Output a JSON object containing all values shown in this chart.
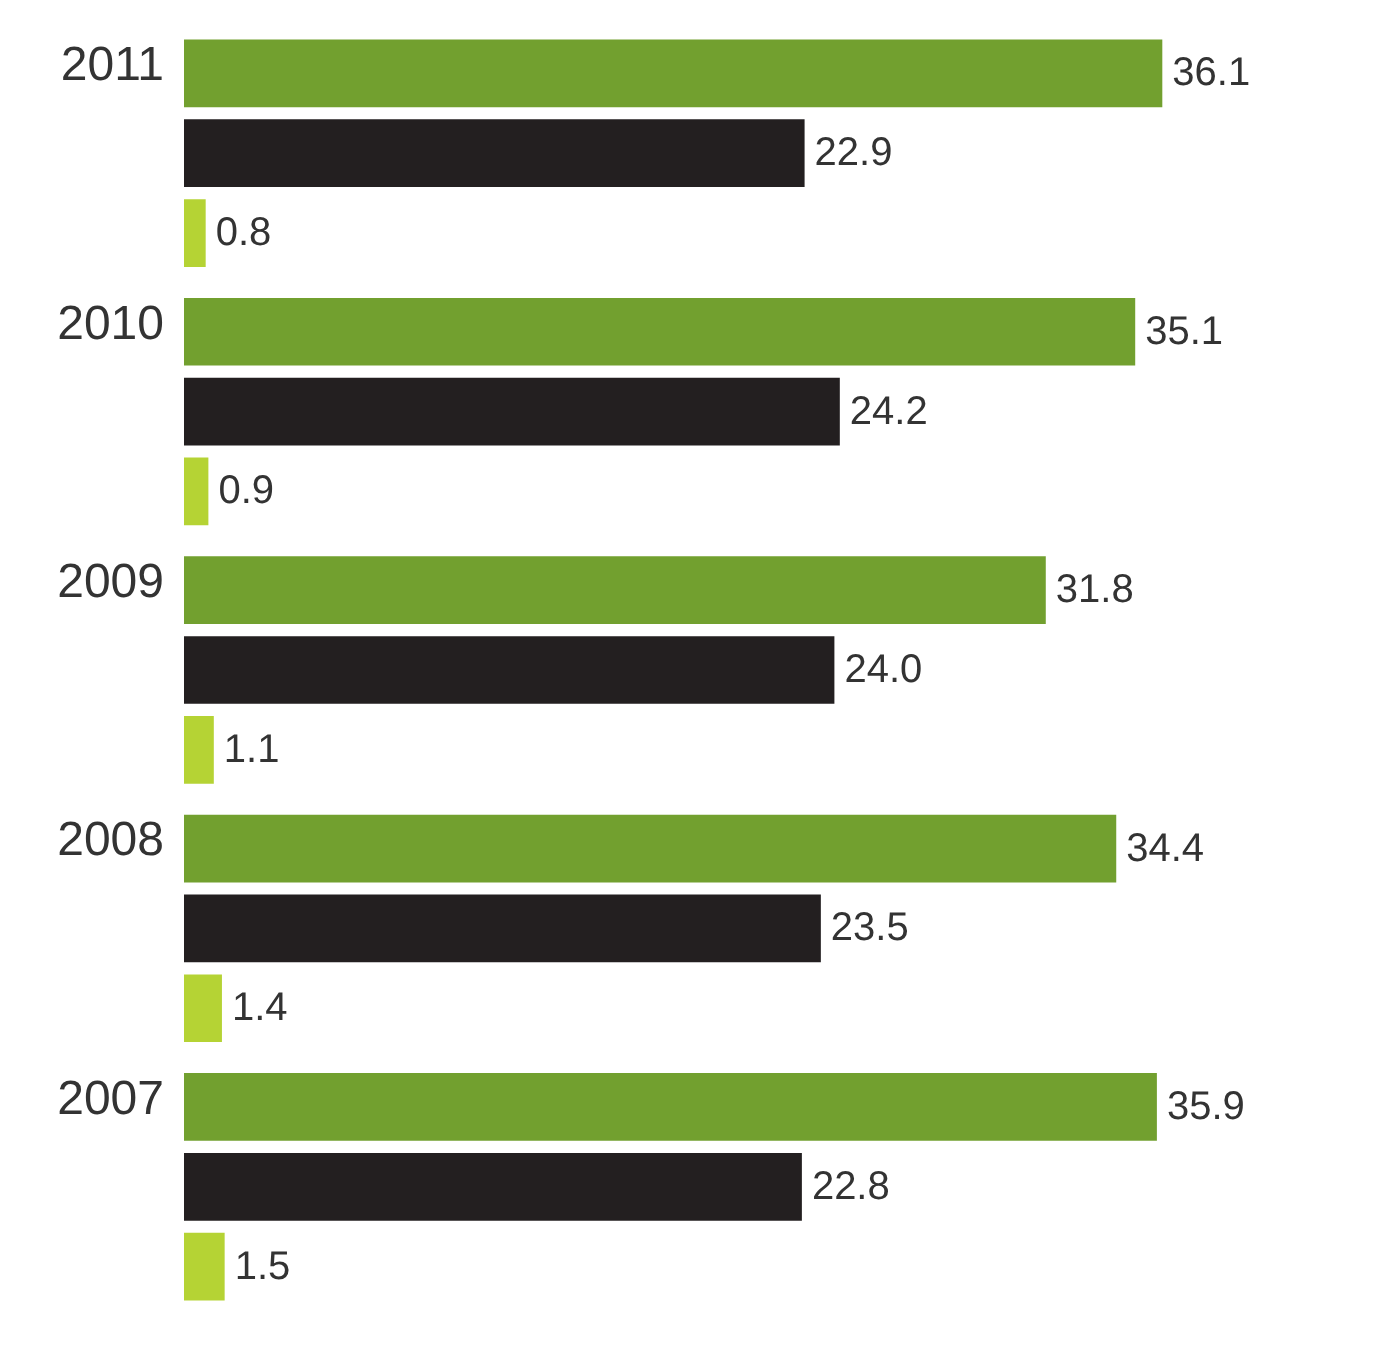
{
  "chart_data": {
    "type": "bar",
    "orientation": "horizontal",
    "categories": [
      "2011",
      "2010",
      "2009",
      "2008",
      "2007"
    ],
    "series": [
      {
        "color": "#72a02f",
        "values": [
          36.1,
          35.1,
          31.8,
          34.4,
          35.9
        ],
        "value_labels": [
          "36.1",
          "35.1",
          "31.8",
          "34.4",
          "35.9"
        ]
      },
      {
        "color": "#231f20",
        "values": [
          22.9,
          24.2,
          24.0,
          23.5,
          22.8
        ],
        "value_labels": [
          "22.9",
          "24.2",
          "24.0",
          "23.5",
          "22.8"
        ]
      },
      {
        "color": "#b5d334",
        "values": [
          0.8,
          0.9,
          1.1,
          1.4,
          1.5
        ],
        "value_labels": [
          "0.8",
          "0.9",
          "1.1",
          "1.4",
          "1.5"
        ]
      }
    ],
    "grid": false
  }
}
